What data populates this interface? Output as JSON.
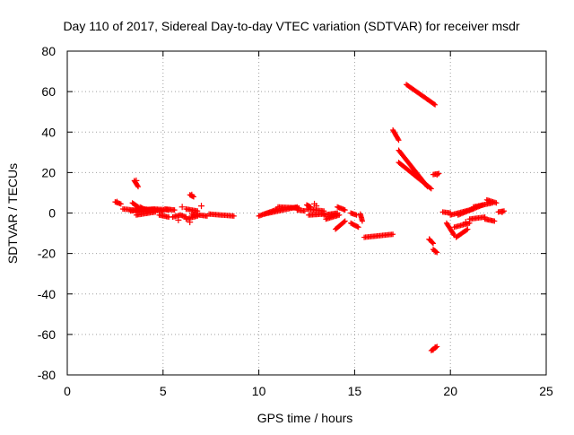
{
  "chart_data": {
    "type": "scatter",
    "title": "Day 110 of 2017, Sidereal Day-to-day VTEC variation (SDTVAR) for receiver msdr",
    "xlabel": "GPS time / hours",
    "ylabel": "SDTVAR / TECUs",
    "xlim": [
      0,
      25
    ],
    "ylim": [
      -80,
      80
    ],
    "x_ticks": [
      0,
      5,
      10,
      15,
      20,
      25
    ],
    "y_ticks": [
      -80,
      -60,
      -40,
      -20,
      0,
      20,
      40,
      60,
      80
    ],
    "grid": true,
    "grid_style": "dotted",
    "legend": "none",
    "marker": "+",
    "color": "#ff0000",
    "segments": [
      {
        "x0": 2.5,
        "y0": 5.5,
        "x1": 2.8,
        "y1": 4.5
      },
      {
        "x0": 2.9,
        "y0": 2.0,
        "x1": 4.0,
        "y1": 1.0
      },
      {
        "x0": 3.5,
        "y0": 16.0,
        "x1": 3.7,
        "y1": 13.0
      },
      {
        "x0": 3.4,
        "y0": 5.0,
        "x1": 3.7,
        "y1": 3.0
      },
      {
        "x0": 3.3,
        "y0": 1.0,
        "x1": 4.5,
        "y1": 2.0
      },
      {
        "x0": 3.6,
        "y0": -1.0,
        "x1": 4.6,
        "y1": 0.5
      },
      {
        "x0": 3.8,
        "y0": 3.0,
        "x1": 4.2,
        "y1": 1.0
      },
      {
        "x0": 4.0,
        "y0": 2.0,
        "x1": 5.0,
        "y1": 1.0
      },
      {
        "x0": 4.5,
        "y0": 2.0,
        "x1": 5.3,
        "y1": 1.5
      },
      {
        "x0": 4.8,
        "y0": -1.0,
        "x1": 5.3,
        "y1": -2.0
      },
      {
        "x0": 5.1,
        "y0": 2.0,
        "x1": 5.6,
        "y1": 1.5
      },
      {
        "x0": 5.5,
        "y0": -2.0,
        "x1": 5.9,
        "y1": -1.0
      },
      {
        "x0": 5.9,
        "y0": -1.0,
        "x1": 6.2,
        "y1": -2.0
      },
      {
        "x0": 6.2,
        "y0": 2.0,
        "x1": 6.8,
        "y1": 1.0
      },
      {
        "x0": 6.2,
        "y0": -3.0,
        "x1": 6.8,
        "y1": -1.5
      },
      {
        "x0": 6.4,
        "y0": 9.0,
        "x1": 6.6,
        "y1": 8.0
      },
      {
        "x0": 6.5,
        "y0": -0.5,
        "x1": 7.3,
        "y1": -1.5
      },
      {
        "x0": 7.4,
        "y0": -0.5,
        "x1": 8.7,
        "y1": -1.5
      },
      {
        "x0": 10.0,
        "y0": -1.5,
        "x1": 11.0,
        "y1": 2.0
      },
      {
        "x0": 10.3,
        "y0": -0.5,
        "x1": 12.0,
        "y1": 3.0
      },
      {
        "x0": 11.0,
        "y0": 3.0,
        "x1": 12.1,
        "y1": 2.5
      },
      {
        "x0": 12.0,
        "y0": 1.5,
        "x1": 12.4,
        "y1": 1.0
      },
      {
        "x0": 12.5,
        "y0": 4.0,
        "x1": 12.7,
        "y1": 3.0
      },
      {
        "x0": 12.5,
        "y0": 2.0,
        "x1": 13.4,
        "y1": 1.0
      },
      {
        "x0": 12.6,
        "y0": -1.0,
        "x1": 13.4,
        "y1": -0.5
      },
      {
        "x0": 13.4,
        "y0": -1.0,
        "x1": 14.1,
        "y1": 0.0
      },
      {
        "x0": 13.5,
        "y0": -3.0,
        "x1": 14.2,
        "y1": -1.0
      },
      {
        "x0": 14.1,
        "y0": 3.0,
        "x1": 14.5,
        "y1": 1.5
      },
      {
        "x0": 14.0,
        "y0": -8.0,
        "x1": 14.5,
        "y1": -4.0
      },
      {
        "x0": 14.8,
        "y0": 0.0,
        "x1": 15.1,
        "y1": -1.0
      },
      {
        "x0": 14.8,
        "y0": -5.0,
        "x1": 15.2,
        "y1": -7.0
      },
      {
        "x0": 15.3,
        "y0": -0.5,
        "x1": 15.4,
        "y1": -4.0
      },
      {
        "x0": 15.5,
        "y0": -12.0,
        "x1": 17.0,
        "y1": -10.5
      },
      {
        "x0": 17.0,
        "y0": 41.0,
        "x1": 17.3,
        "y1": 36.0
      },
      {
        "x0": 17.3,
        "y0": 31.0,
        "x1": 18.8,
        "y1": 13.0
      },
      {
        "x0": 17.3,
        "y0": 25.0,
        "x1": 19.0,
        "y1": 12.0
      },
      {
        "x0": 17.7,
        "y0": 63.5,
        "x1": 19.2,
        "y1": 53.5
      },
      {
        "x0": 19.1,
        "y0": 19.0,
        "x1": 19.4,
        "y1": 19.5
      },
      {
        "x0": 18.9,
        "y0": -13.0,
        "x1": 19.1,
        "y1": -15.0
      },
      {
        "x0": 19.1,
        "y0": -18.0,
        "x1": 19.3,
        "y1": -19.5
      },
      {
        "x0": 19.0,
        "y0": -68.0,
        "x1": 19.3,
        "y1": -66.0
      },
      {
        "x0": 19.6,
        "y0": 0.5,
        "x1": 20.0,
        "y1": 0.0
      },
      {
        "x0": 19.8,
        "y0": -5.0,
        "x1": 20.2,
        "y1": -11.0
      },
      {
        "x0": 20.0,
        "y0": -1.0,
        "x1": 21.2,
        "y1": 2.0
      },
      {
        "x0": 20.3,
        "y0": -12.0,
        "x1": 20.9,
        "y1": -8.0
      },
      {
        "x0": 20.2,
        "y0": -7.0,
        "x1": 21.0,
        "y1": -5.0
      },
      {
        "x0": 20.4,
        "y0": -1.0,
        "x1": 21.7,
        "y1": 4.0
      },
      {
        "x0": 21.0,
        "y0": -3.0,
        "x1": 21.8,
        "y1": -2.0
      },
      {
        "x0": 21.2,
        "y0": 3.0,
        "x1": 22.2,
        "y1": 5.0
      },
      {
        "x0": 21.8,
        "y0": -3.0,
        "x1": 22.3,
        "y1": -4.0
      },
      {
        "x0": 21.9,
        "y0": 6.5,
        "x1": 22.4,
        "y1": 5.0
      },
      {
        "x0": 22.5,
        "y0": 0.5,
        "x1": 22.8,
        "y1": 1.0
      }
    ],
    "points": [
      [
        2.6,
        5.5
      ],
      [
        3.6,
        16.0
      ],
      [
        6.5,
        9.0
      ],
      [
        7.0,
        3.5
      ],
      [
        6.0,
        3.0
      ],
      [
        5.8,
        -3.5
      ],
      [
        6.4,
        -4.5
      ],
      [
        12.9,
        4.5
      ],
      [
        13.0,
        3.5
      ],
      [
        18.9,
        -13.0
      ],
      [
        19.2,
        -19.0
      ],
      [
        19.1,
        -67.5
      ],
      [
        19.2,
        -66.5
      ],
      [
        19.3,
        19.0
      ],
      [
        20.8,
        -4.5
      ],
      [
        22.7,
        0.5
      ]
    ]
  }
}
